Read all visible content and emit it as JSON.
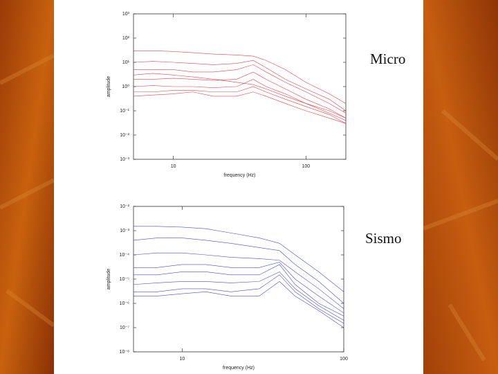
{
  "chart_data": [
    {
      "type": "line",
      "annotation": "Micro",
      "xlabel": "frequency (Hz)",
      "ylabel": "amplitude",
      "xscale": "log",
      "yscale": "log",
      "xlim": [
        5,
        200
      ],
      "xticks": [
        10,
        100
      ],
      "ylim": [
        0.001,
        1000
      ],
      "yticks": [
        {
          "value": 1000,
          "label": "10³"
        },
        {
          "value": 100,
          "label": "10²"
        },
        {
          "value": 10,
          "label": "10¹"
        },
        {
          "value": 1,
          "label": "10⁰"
        },
        {
          "value": 0.1,
          "label": "10⁻¹"
        },
        {
          "value": 0.01,
          "label": "10⁻²"
        },
        {
          "value": 0.001,
          "label": "10⁻³"
        }
      ],
      "x": [
        5,
        7,
        10,
        14,
        20,
        30,
        40,
        50,
        70,
        100,
        150,
        200
      ],
      "series": [
        {
          "color": "#e8202a",
          "values": [
            30,
            30,
            28,
            25,
            22,
            20,
            18,
            12,
            5,
            1.5,
            0.5,
            0.2
          ]
        },
        {
          "color": "#e8202a",
          "values": [
            10,
            11,
            10,
            9,
            8,
            9,
            12,
            6,
            2,
            0.8,
            0.3,
            0.1
          ]
        },
        {
          "color": "#e8202a",
          "values": [
            5,
            5,
            5,
            4,
            4,
            5,
            8,
            4,
            1.5,
            0.6,
            0.2,
            0.08
          ]
        },
        {
          "color": "#e8202a",
          "values": [
            2,
            2,
            2.2,
            2,
            1.8,
            2,
            4,
            2,
            0.8,
            0.3,
            0.12,
            0.05
          ]
        },
        {
          "color": "#e8202a",
          "values": [
            1,
            1.1,
            1,
            1,
            0.9,
            1,
            2,
            1,
            0.5,
            0.2,
            0.08,
            0.04
          ]
        },
        {
          "color": "#e8202a",
          "values": [
            0.6,
            0.6,
            0.7,
            0.7,
            0.6,
            0.6,
            1,
            0.6,
            0.3,
            0.15,
            0.07,
            0.03
          ]
        },
        {
          "color": "#e8202a",
          "values": [
            0.4,
            0.45,
            0.5,
            0.6,
            0.4,
            0.4,
            0.6,
            0.4,
            0.2,
            0.1,
            0.05,
            0.03
          ]
        },
        {
          "color": "#e8202a",
          "values": [
            3,
            3.5,
            3,
            2.5,
            2,
            1.5,
            1.2,
            0.8,
            0.4,
            0.2,
            0.1,
            0.05
          ]
        }
      ]
    },
    {
      "type": "line",
      "annotation": "Sismo",
      "xlabel": "frequency (Hz)",
      "ylabel": "amplitude",
      "xscale": "log",
      "yscale": "log",
      "xlim": [
        5,
        100
      ],
      "xticks": [
        10,
        100
      ],
      "ylim": [
        1e-08,
        0.01
      ],
      "yticks": [
        {
          "value": 0.01,
          "label": "10⁻²"
        },
        {
          "value": 0.001,
          "label": "10⁻³"
        },
        {
          "value": 0.0001,
          "label": "10⁻⁴"
        },
        {
          "value": 1e-05,
          "label": "10⁻⁵"
        },
        {
          "value": 1e-06,
          "label": "10⁻⁶"
        },
        {
          "value": 1e-07,
          "label": "10⁻⁷"
        },
        {
          "value": 1e-08,
          "label": "10⁻⁸"
        }
      ],
      "x": [
        5,
        7,
        10,
        14,
        20,
        30,
        40,
        50,
        70,
        100
      ],
      "series": [
        {
          "color": "#2a2ad8",
          "values": [
            0.0015,
            0.0015,
            0.0014,
            0.0012,
            0.0008,
            0.0005,
            0.0003,
            0.0001,
            2e-05,
            3e-06
          ]
        },
        {
          "color": "#2a2ad8",
          "values": [
            0.0004,
            0.0005,
            0.0005,
            0.0004,
            0.0003,
            0.0002,
            0.00015,
            4e-05,
            8e-06,
            1e-06
          ]
        },
        {
          "color": "#2a2ad8",
          "values": [
            0.0001,
            0.00012,
            0.00012,
            0.0001,
            8e-05,
            7e-05,
            6e-05,
            2e-05,
            4e-06,
            6e-07
          ]
        },
        {
          "color": "#2a2ad8",
          "values": [
            3e-05,
            3e-05,
            4e-05,
            4e-05,
            3e-05,
            3e-05,
            5e-05,
            1e-05,
            2e-06,
            4e-07
          ]
        },
        {
          "color": "#2a2ad8",
          "values": [
            1.5e-05,
            1.5e-05,
            2e-05,
            2e-05,
            1.5e-05,
            1.5e-05,
            4e-05,
            6e-06,
            1e-06,
            3e-07
          ]
        },
        {
          "color": "#2a2ad8",
          "values": [
            6e-06,
            7e-06,
            8e-06,
            8e-06,
            7e-06,
            8e-06,
            2e-05,
            4e-06,
            8e-07,
            2e-07
          ]
        },
        {
          "color": "#2a2ad8",
          "values": [
            3e-06,
            3e-06,
            4e-06,
            4e-06,
            3e-06,
            4e-06,
            1.5e-05,
            3e-06,
            6e-07,
            1.5e-07
          ]
        },
        {
          "color": "#2a2ad8",
          "values": [
            2e-06,
            2e-06,
            2.5e-06,
            3e-06,
            2e-06,
            2e-06,
            8e-06,
            2e-06,
            5e-07,
            1e-07
          ]
        }
      ]
    }
  ]
}
